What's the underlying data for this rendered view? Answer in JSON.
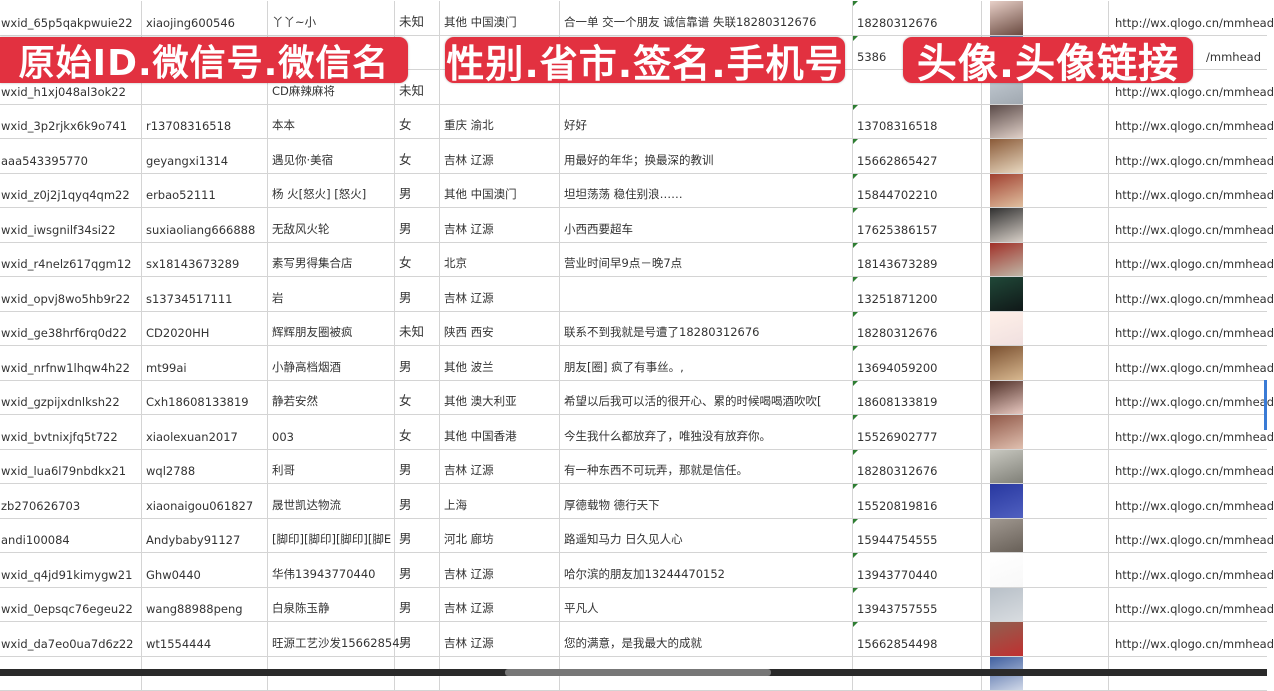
{
  "banners": [
    "原始ID.微信号.微信名",
    "性别.省市.签名.手机号",
    "头像.头像链接"
  ],
  "accent_color": "#e23140",
  "rows": [
    {
      "id": "wxid_65p5qakpwuie22",
      "wxno": "xiaojing600546",
      "name": "丫丫~小",
      "gender": "未知",
      "region": "其他 中国澳门",
      "sign": "合一单 交一个朋友 诚信靠谱 失联18280312676",
      "phone": "18280312676",
      "avatar": [
        "#e8d0c8",
        "#6a4a40"
      ],
      "url": "http://wx.qlogo.cn/mmhead"
    },
    {
      "id": "",
      "wxno": "",
      "name": "",
      "gender": "",
      "region": "",
      "sign": "",
      "phone": "5386",
      "avatar": [
        "#6070a0",
        "#c0c8d8"
      ],
      "url": "/mmhead"
    },
    {
      "id": "wxid_h1xj048al3ok22",
      "wxno": "",
      "name": "CD麻辣麻将",
      "gender": "未知",
      "region": "",
      "sign": "",
      "phone": "",
      "avatar": [
        "#c8d0d8",
        "#a0a8b0"
      ],
      "url": "http://wx.qlogo.cn/mmhead"
    },
    {
      "id": "wxid_3p2rjkx6k9o741",
      "wxno": "r13708316518",
      "name": "本本",
      "gender": "女",
      "region": "重庆 渝北",
      "sign": "好好",
      "phone": "13708316518",
      "avatar": [
        "#5a4a48",
        "#e0d0c8"
      ],
      "url": "http://wx.qlogo.cn/mmhead"
    },
    {
      "id": "aaa543395770",
      "wxno": "geyangxi1314",
      "name": "遇见你·美宿",
      "gender": "女",
      "region": "吉林 辽源",
      "sign": "用最好的年华；换最深的教训",
      "phone": "15662865427",
      "avatar": [
        "#8a5a38",
        "#e8d8c0"
      ],
      "url": "http://wx.qlogo.cn/mmhead"
    },
    {
      "id": "wxid_z0j2j1qyq4qm22",
      "wxno": "erbao52111",
      "name": "杨 火[怒火] [怒火]",
      "gender": "男",
      "region": "其他 中国澳门",
      "sign": "坦坦荡荡 稳住别浪……",
      "phone": "15844702210",
      "avatar": [
        "#a04030",
        "#e0c0a0"
      ],
      "url": "http://wx.qlogo.cn/mmhead"
    },
    {
      "id": "wxid_iwsgnilf34si22",
      "wxno": "suxiaoliang666888",
      "name": "无敌风火轮",
      "gender": "男",
      "region": "吉林 辽源",
      "sign": "小西西要超车",
      "phone": "17625386157",
      "avatar": [
        "#303030",
        "#d8d0c8"
      ],
      "url": "http://wx.qlogo.cn/mmhead"
    },
    {
      "id": "wxid_r4nelz617qgm12",
      "wxno": "sx18143673289",
      "name": "素写男得集合店",
      "gender": "女",
      "region": "北京",
      "sign": "营业时间早9点－晚7点",
      "phone": "18143673289",
      "avatar": [
        "#a03028",
        "#c0b8a8"
      ],
      "url": "http://wx.qlogo.cn/mmhead"
    },
    {
      "id": "wxid_opvj8wo5hb9r22",
      "wxno": "s13734517111",
      "name": "岩",
      "gender": "男",
      "region": "吉林 辽源",
      "sign": "",
      "phone": "13251871200",
      "avatar": [
        "#204838",
        "#101818"
      ],
      "url": "http://wx.qlogo.cn/mmhead"
    },
    {
      "id": "wxid_ge38hrf6rq0d22",
      "wxno": "CD2020HH",
      "name": "辉辉朋友圈被疯",
      "gender": "未知",
      "region": "陕西 西安",
      "sign": "联系不到我就是号遭了18280312676",
      "phone": "18280312676",
      "avatar": [
        "#fff0e8",
        "#f0e0e0"
      ],
      "url": "http://wx.qlogo.cn/mmhead"
    },
    {
      "id": "wxid_nrfnw1lhqw4h22",
      "wxno": "mt99ai",
      "name": "小静高档烟酒",
      "gender": "男",
      "region": "其他 波兰",
      "sign": "朋友[圈] 疯了有事丝。,",
      "phone": "13694059200",
      "avatar": [
        "#7a5030",
        "#d8b890"
      ],
      "url": "http://wx.qlogo.cn/mmhead"
    },
    {
      "id": "wxid_gzpijxdnlksh22",
      "wxno": "Cxh18608133819",
      "name": "静若安然",
      "gender": "女",
      "region": "其他 澳大利亚",
      "sign": "希望以后我可以活的很开心、累的时候喝喝酒吹吹[",
      "phone": "18608133819",
      "avatar": [
        "#503028",
        "#e8c8c0"
      ],
      "url": "http://wx.qlogo.cn/mmhead"
    },
    {
      "id": "wxid_bvtnixjfq5t722",
      "wxno": "xiaolexuan2017",
      "name": "003",
      "gender": "女",
      "region": "其他 中国香港",
      "sign": "今生我什么都放弃了，唯独没有放弃你。",
      "phone": "15526902777",
      "avatar": [
        "#905848",
        "#e0c0b0"
      ],
      "url": "http://wx.qlogo.cn/mmhead"
    },
    {
      "id": "wxid_lua6l79nbdkx21",
      "wxno": "wql2788",
      "name": "利哥",
      "gender": "男",
      "region": "吉林 辽源",
      "sign": "有一种东西不可玩弄，那就是信任。",
      "phone": "18280312676",
      "avatar": [
        "#c8c8c0",
        "#808078"
      ],
      "url": "http://wx.qlogo.cn/mmhead"
    },
    {
      "id": "zb270626703",
      "wxno": "xiaonaigou061827",
      "name": "晟世凯达物流",
      "gender": "男",
      "region": "上海",
      "sign": "厚德载物 德行天下",
      "phone": "15520819816",
      "avatar": [
        "#2838a0",
        "#5060c0"
      ],
      "url": "http://wx.qlogo.cn/mmhead"
    },
    {
      "id": "andi100084",
      "wxno": "Andybaby91127",
      "name": "[脚印][脚印][脚印][脚E",
      "gender": "男",
      "region": "河北 廊坊",
      "sign": "路遥知马力 日久见人心",
      "phone": "15944754555",
      "avatar": [
        "#a09890",
        "#686058"
      ],
      "url": "http://wx.qlogo.cn/mmhead"
    },
    {
      "id": "wxid_q4jd91kimygw21",
      "wxno": "Ghw0440",
      "name": "华伟13943770440",
      "gender": "男",
      "region": "吉林 辽源",
      "sign": "哈尔滨的朋友加13244470152",
      "phone": "13943770440",
      "avatar": [
        "#ffffff",
        "#f8f8f8"
      ],
      "url": "http://wx.qlogo.cn/mmhead"
    },
    {
      "id": "wxid_0epsqc76egeu22",
      "wxno": "wang88988peng",
      "name": "白泉陈玉静",
      "gender": "男",
      "region": "吉林 辽源",
      "sign": "平凡人",
      "phone": "13943757555",
      "avatar": [
        "#b8c0c8",
        "#d8dce0"
      ],
      "url": "http://wx.qlogo.cn/mmhead"
    },
    {
      "id": "wxid_da7eo0ua7d6z22",
      "wxno": "wt1554444",
      "name": "旺源工艺沙发15662854",
      "gender": "男",
      "region": "吉林 辽源",
      "sign": "您的满意，是我最大的成就",
      "phone": "15662854498",
      "avatar": [
        "#906050",
        "#c03030"
      ],
      "url": "http://wx.qlogo.cn/mmhead"
    },
    {
      "id": "",
      "wxno": "",
      "name": "",
      "gender": "",
      "region": "",
      "sign": "",
      "phone": "",
      "avatar": [
        "#4060a0",
        "#d0d8e8"
      ],
      "url": ""
    }
  ]
}
